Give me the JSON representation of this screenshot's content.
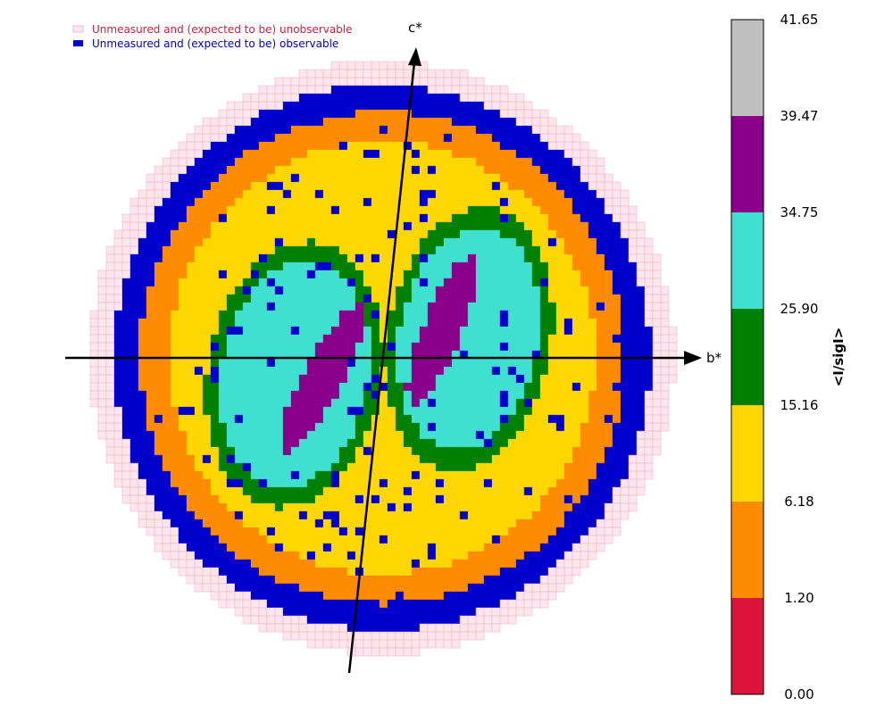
{
  "chart_data": {
    "type": "heatmap",
    "title": "",
    "legend": {
      "placement": "top-left",
      "entries": [
        {
          "label": "Unmeasured and (expected to be) unobservable",
          "color": "#ffe6ee",
          "edge": "#e8b0c0",
          "text_color": "#cc2244"
        },
        {
          "label": "Unmeasured and (expected to be) observable",
          "color": "#0000cc",
          "edge": "#0000cc",
          "text_color": "#0000cc"
        }
      ]
    },
    "axes": {
      "horizontal_label": "b*",
      "vertical_label": "c*",
      "vertical_tilt_deg": 10
    },
    "colorbar": {
      "label": "<I/sigI>",
      "ticks": [
        "0.00",
        "1.20",
        "6.18",
        "15.16",
        "25.90",
        "34.75",
        "39.47",
        "41.65"
      ],
      "colors": [
        "#dc143c",
        "#ff8c00",
        "#ffd700",
        "#008000",
        "#40e0d0",
        "#8b008b",
        "#c0c0c0"
      ]
    },
    "rings": [
      {
        "name": "unmeasured-unobservable",
        "color": "#ffe6ee",
        "inner": 0.92,
        "outer": 1.0
      },
      {
        "name": "unmeasured-observable",
        "color": "#0000cc",
        "inner": 0.83,
        "outer": 0.92
      },
      {
        "name": "I/sigI 1.20-6.18",
        "color": "#ff8c00",
        "inner": 0.73,
        "outer": 0.83
      },
      {
        "name": "I/sigI 6.18-15.16",
        "color": "#ffd700",
        "inner": 0.0,
        "outer": 0.73
      }
    ]
  }
}
